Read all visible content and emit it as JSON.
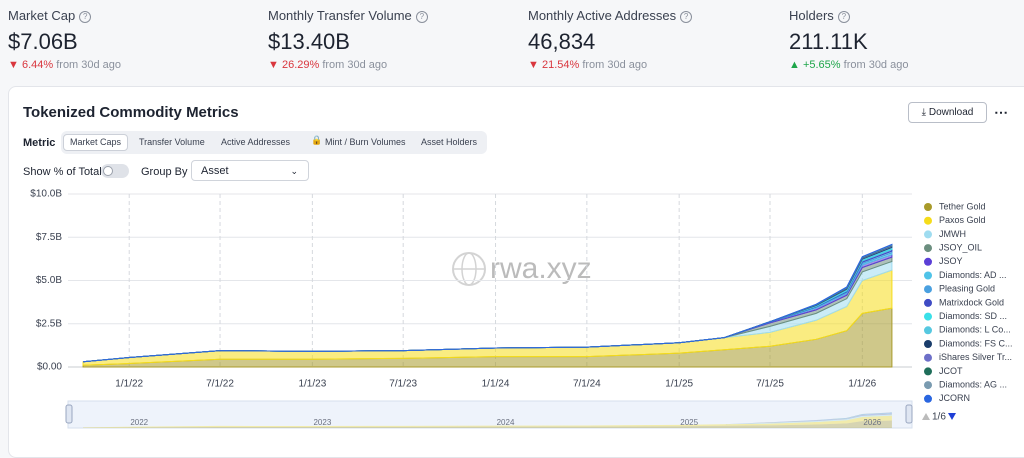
{
  "metrics": [
    {
      "label": "Market Cap",
      "value": "$7.06B",
      "change": "6.44%",
      "period": "from 30d ago"
    },
    {
      "label": "Monthly Transfer Volume",
      "value": "$13.40B",
      "change": "26.29%",
      "period": "from 30d ago"
    },
    {
      "label": "Monthly Active Addresses",
      "value": "46,834",
      "change": "21.54%",
      "period": "from 30d ago"
    },
    {
      "label": "Holders",
      "value": "211.11K",
      "change": "+5.65%",
      "period": "from 30d ago"
    }
  ],
  "panel": {
    "title": "Tokenized Commodity Metrics",
    "download": "Download",
    "metric_label": "Metric",
    "tabs": [
      "Market Caps",
      "Transfer Volume",
      "Active Addresses",
      "Mint / Burn Volumes",
      "Asset Holders"
    ],
    "show_percent_label": "Show % of Total",
    "group_by_label": "Group By",
    "group_by_value": "Asset"
  },
  "chart_data": {
    "type": "stacked-area",
    "watermark": "rwa.xyz",
    "x": [
      "10/1/21",
      "1/1/22",
      "7/1/22",
      "1/1/23",
      "7/1/23",
      "1/1/24",
      "7/1/24",
      "1/1/25",
      "4/1/25",
      "7/1/25",
      "10/1/25",
      "12/1/25",
      "1/1/26",
      "3/1/26"
    ],
    "xlim": [
      "9/1/21",
      "4/10/26"
    ],
    "xticks": [
      "1/1/22",
      "7/1/22",
      "1/1/23",
      "7/1/23",
      "1/1/24",
      "7/1/24",
      "1/1/25",
      "7/1/25",
      "1/1/26"
    ],
    "ylim": [
      0,
      10
    ],
    "yticks": [
      {
        "value": 0,
        "label": "$0.00"
      },
      {
        "value": 2.5,
        "label": "$2.5B"
      },
      {
        "value": 5,
        "label": "$5.0B"
      },
      {
        "value": 7.5,
        "label": "$7.5B"
      },
      {
        "value": 10,
        "label": "$10.0B"
      }
    ],
    "grid": true,
    "series": [
      {
        "name": "Tether Gold",
        "color": "#a89a2a",
        "values": [
          0.1,
          0.2,
          0.45,
          0.45,
          0.5,
          0.6,
          0.6,
          0.8,
          1.0,
          1.2,
          1.6,
          2.1,
          3.1,
          3.4
        ]
      },
      {
        "name": "Paxos Gold",
        "color": "#f5dc1a",
        "values": [
          0.2,
          0.35,
          0.5,
          0.45,
          0.45,
          0.5,
          0.55,
          0.6,
          0.7,
          0.8,
          1.1,
          1.4,
          1.9,
          2.2
        ]
      },
      {
        "name": "JMWH",
        "color": "#9fdcf0",
        "values": [
          0,
          0,
          0,
          0,
          0,
          0,
          0,
          0,
          0,
          0.35,
          0.4,
          0.45,
          0.5,
          0.5
        ]
      },
      {
        "name": "JSOY_OIL",
        "color": "#6b8e7f",
        "values": [
          0,
          0,
          0,
          0,
          0,
          0,
          0,
          0,
          0,
          0.2,
          0.2,
          0.2,
          0.25,
          0.25
        ]
      },
      {
        "name": "JSOY",
        "color": "#5b3fd6",
        "values": [
          0,
          0,
          0,
          0,
          0,
          0,
          0,
          0,
          0,
          0.05,
          0.1,
          0.1,
          0.15,
          0.15
        ]
      },
      {
        "name": "Diamonds: AD ...",
        "color": "#4fc3e8",
        "values": [
          0,
          0,
          0,
          0,
          0,
          0,
          0,
          0,
          0,
          0,
          0.05,
          0.05,
          0.08,
          0.1
        ]
      },
      {
        "name": "Pleasing Gold",
        "color": "#4aa0e0",
        "values": [
          0,
          0,
          0,
          0,
          0,
          0,
          0,
          0,
          0,
          0,
          0.02,
          0.05,
          0.08,
          0.1
        ]
      },
      {
        "name": "Matrixdock Gold",
        "color": "#3f4bc4",
        "values": [
          0,
          0,
          0,
          0,
          0,
          0,
          0,
          0,
          0,
          0.02,
          0.03,
          0.05,
          0.08,
          0.1
        ]
      },
      {
        "name": "Diamonds: SD ...",
        "color": "#3ae0e8",
        "values": [
          0,
          0,
          0,
          0,
          0,
          0,
          0,
          0,
          0,
          0,
          0.03,
          0.05,
          0.05,
          0.06
        ]
      },
      {
        "name": "Diamonds: L Co...",
        "color": "#56c8e0",
        "values": [
          0,
          0,
          0,
          0,
          0,
          0,
          0,
          0,
          0,
          0,
          0.03,
          0.05,
          0.05,
          0.06
        ]
      },
      {
        "name": "Diamonds: FS C...",
        "color": "#1a3d6b",
        "values": [
          0,
          0,
          0,
          0,
          0,
          0,
          0,
          0,
          0,
          0,
          0.02,
          0.04,
          0.04,
          0.05
        ]
      },
      {
        "name": "iShares Silver Tr...",
        "color": "#6d6fc8",
        "values": [
          0,
          0,
          0,
          0,
          0,
          0,
          0,
          0,
          0,
          0,
          0,
          0.02,
          0.03,
          0.04
        ]
      },
      {
        "name": "JCOT",
        "color": "#1f6e5a",
        "values": [
          0,
          0,
          0,
          0,
          0,
          0,
          0,
          0,
          0,
          0,
          0.02,
          0.03,
          0.03,
          0.03
        ]
      },
      {
        "name": "Diamonds: AG ...",
        "color": "#7a9bb0",
        "values": [
          0,
          0,
          0,
          0,
          0,
          0,
          0,
          0,
          0,
          0,
          0.01,
          0.02,
          0.02,
          0.03
        ]
      },
      {
        "name": "JCORN",
        "color": "#2a66e0",
        "values": [
          0,
          0,
          0,
          0,
          0,
          0,
          0,
          0,
          0,
          0,
          0.02,
          0.02,
          0.02,
          0.02
        ]
      }
    ],
    "legend_page": "1/6",
    "navigator_labels": [
      "2022",
      "2023",
      "2024",
      "2025",
      "2026"
    ]
  }
}
